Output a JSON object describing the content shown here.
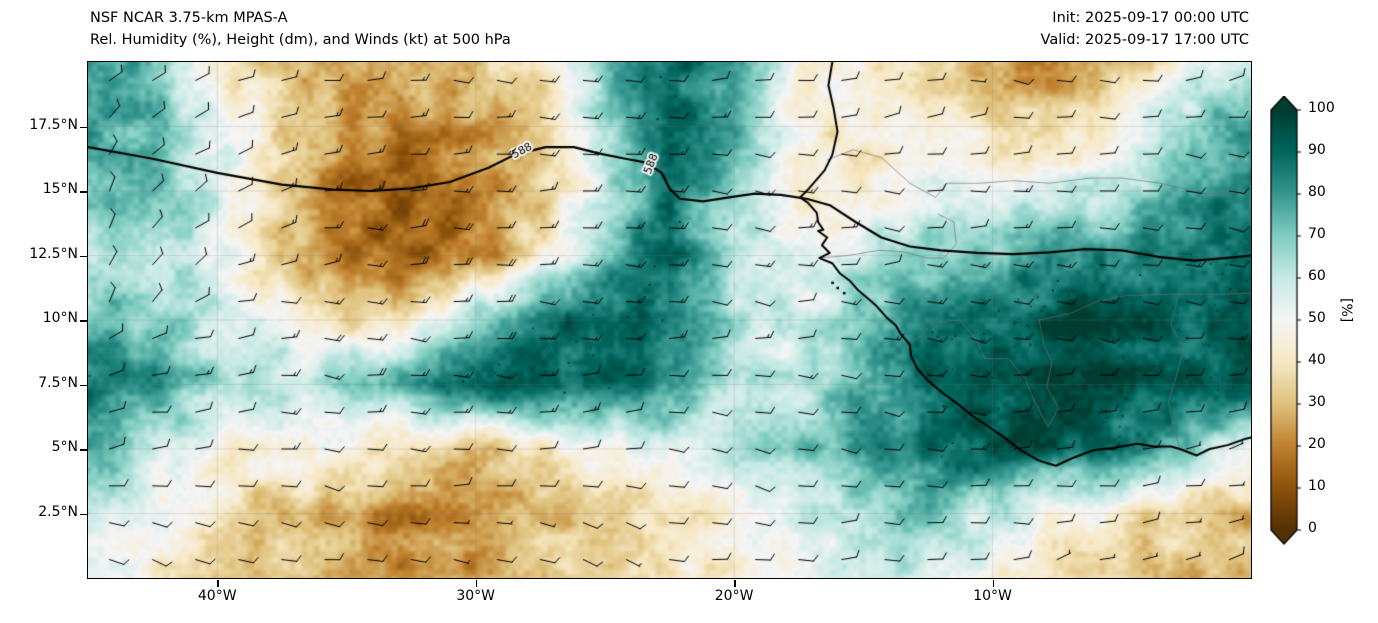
{
  "header": {
    "title_line1": "NSF NCAR 3.75-km MPAS-A",
    "title_line2": "Rel. Humidity (%), Height (dm), and Winds (kt) at 500 hPa",
    "init_label": "Init: 2025-09-17 00:00 UTC",
    "valid_label": "Valid: 2025-09-17 17:00 UTC"
  },
  "axes": {
    "lon_range": [
      -45,
      0
    ],
    "lat_range": [
      0,
      20
    ],
    "x_ticks": [
      {
        "label": "40°W",
        "lon": -40
      },
      {
        "label": "30°W",
        "lon": -30
      },
      {
        "label": "20°W",
        "lon": -20
      },
      {
        "label": "10°W",
        "lon": -10
      }
    ],
    "y_ticks": [
      {
        "label": "17.5°N",
        "lat": 17.5
      },
      {
        "label": "15°N",
        "lat": 15
      },
      {
        "label": "12.5°N",
        "lat": 12.5
      },
      {
        "label": "10°N",
        "lat": 10
      },
      {
        "label": "7.5°N",
        "lat": 7.5
      },
      {
        "label": "5°N",
        "lat": 5
      },
      {
        "label": "2.5°N",
        "lat": 2.5
      }
    ]
  },
  "colorbar": {
    "label": "[%]",
    "ticks": [
      0,
      10,
      20,
      30,
      40,
      50,
      60,
      70,
      80,
      90,
      100
    ],
    "vmin": 0,
    "vmax": 100,
    "colors": [
      "#543005",
      "#8c510a",
      "#bf812d",
      "#dfc27d",
      "#f6e8c3",
      "#f5f5f5",
      "#c7eae5",
      "#80cdc1",
      "#35978f",
      "#01665e",
      "#003c30"
    ]
  },
  "chart_data": {
    "type": "heatmap",
    "title": "NSF NCAR 3.75-km MPAS-A — Rel. Humidity (%), Height (dm), and Winds (kt) at 500 hPa",
    "xlabel": "",
    "ylabel": "",
    "field": "relative humidity (%) at 500 hPa",
    "overlays": [
      "geopotential height contour 588 dm",
      "wind barbs (kt)",
      "coastline",
      "country borders"
    ],
    "rh_grid": {
      "lons": [
        -45,
        -42.5,
        -40,
        -37.5,
        -35,
        -32.5,
        -30,
        -27.5,
        -25,
        -22.5,
        -20,
        -17.5,
        -15,
        -12.5,
        -10,
        -7.5,
        -5,
        -2.5,
        0
      ],
      "lats": [
        20,
        17.5,
        15,
        12.5,
        10,
        7.5,
        5,
        2.5,
        0
      ],
      "values": [
        [
          85,
          70,
          45,
          30,
          25,
          30,
          32,
          40,
          70,
          90,
          80,
          50,
          42,
          38,
          28,
          22,
          30,
          45,
          60
        ],
        [
          80,
          75,
          55,
          35,
          22,
          20,
          25,
          35,
          65,
          92,
          75,
          45,
          40,
          45,
          40,
          35,
          45,
          70,
          80
        ],
        [
          70,
          72,
          60,
          35,
          15,
          12,
          18,
          30,
          60,
          88,
          70,
          42,
          45,
          50,
          50,
          55,
          60,
          75,
          85
        ],
        [
          60,
          65,
          55,
          30,
          15,
          13,
          20,
          40,
          70,
          90,
          60,
          50,
          60,
          70,
          75,
          80,
          85,
          88,
          90
        ],
        [
          75,
          70,
          60,
          50,
          35,
          40,
          70,
          90,
          92,
          88,
          65,
          55,
          70,
          85,
          92,
          95,
          93,
          90,
          92
        ],
        [
          90,
          80,
          65,
          60,
          70,
          80,
          90,
          92,
          88,
          80,
          60,
          58,
          75,
          90,
          95,
          96,
          95,
          93,
          92
        ],
        [
          80,
          60,
          45,
          50,
          45,
          35,
          30,
          40,
          50,
          55,
          65,
          70,
          78,
          88,
          92,
          90,
          85,
          70,
          45
        ],
        [
          55,
          50,
          40,
          30,
          25,
          20,
          22,
          30,
          35,
          40,
          45,
          55,
          65,
          70,
          60,
          50,
          40,
          35,
          30
        ],
        [
          50,
          45,
          35,
          30,
          25,
          22,
          25,
          30,
          35,
          40,
          45,
          55,
          60,
          55,
          45,
          40,
          35,
          30,
          28
        ]
      ]
    },
    "height_contour": {
      "value_dm": 588,
      "path": [
        [
          -45,
          16.7
        ],
        [
          -42.5,
          16.25
        ],
        [
          -40,
          15.7
        ],
        [
          -37.5,
          15.25
        ],
        [
          -35.5,
          15.05
        ],
        [
          -34,
          15.0
        ],
        [
          -32.5,
          15.1
        ],
        [
          -31,
          15.35
        ],
        [
          -29.5,
          15.9
        ],
        [
          -28.5,
          16.4
        ],
        [
          -27.3,
          16.7
        ],
        [
          -26.2,
          16.7
        ],
        [
          -25.2,
          16.45
        ],
        [
          -24.2,
          16.25
        ],
        [
          -23.4,
          16.1
        ],
        [
          -22.8,
          15.7
        ],
        [
          -22.5,
          15.1
        ],
        [
          -22.1,
          14.7
        ],
        [
          -21.2,
          14.6
        ],
        [
          -20.2,
          14.75
        ],
        [
          -19.2,
          14.9
        ],
        [
          -18.2,
          14.85
        ],
        [
          -17.2,
          14.7
        ],
        [
          -16.3,
          14.45
        ],
        [
          -15.3,
          13.8
        ],
        [
          -14.3,
          13.2
        ],
        [
          -13.2,
          12.85
        ],
        [
          -12,
          12.7
        ],
        [
          -10.6,
          12.6
        ],
        [
          -9.2,
          12.55
        ],
        [
          -7.8,
          12.62
        ],
        [
          -6.4,
          12.75
        ],
        [
          -5,
          12.7
        ],
        [
          -3.6,
          12.45
        ],
        [
          -2.2,
          12.3
        ],
        [
          -1,
          12.4
        ],
        [
          0,
          12.5
        ]
      ],
      "labels": [
        {
          "text": "588",
          "lon": -28.2,
          "lat": 16.55,
          "rot": -28
        },
        {
          "text": "588",
          "lon": -23.2,
          "lat": 16.05,
          "rot": -68
        }
      ]
    },
    "wind": {
      "units": "kt",
      "lons": [
        -45,
        -40,
        -35,
        -30,
        -25,
        -20,
        -15,
        -10,
        -5,
        0
      ],
      "lats": [
        20,
        17.5,
        15,
        12.5,
        10,
        7.5,
        5,
        2.5,
        0
      ],
      "u": [
        [
          -8,
          -10,
          -12,
          -10,
          -12,
          -12,
          -10,
          -8,
          -8,
          -10
        ],
        [
          -6,
          -10,
          -14,
          -12,
          -14,
          -12,
          -10,
          -10,
          -8,
          -10
        ],
        [
          -4,
          -8,
          -15,
          -15,
          -15,
          -12,
          -10,
          -12,
          -10,
          -12
        ],
        [
          -2,
          -10,
          -15,
          -18,
          -15,
          -12,
          -12,
          -15,
          -12,
          -10
        ],
        [
          -5,
          -12,
          -15,
          -18,
          -15,
          -12,
          -15,
          -15,
          -12,
          -12
        ],
        [
          -8,
          -12,
          -15,
          -15,
          -12,
          -10,
          -12,
          -15,
          -12,
          -10
        ],
        [
          -10,
          -12,
          -12,
          -12,
          -10,
          -10,
          -12,
          -12,
          -10,
          -8
        ],
        [
          -10,
          -10,
          -10,
          -8,
          -8,
          -10,
          -10,
          -8,
          -8,
          -8
        ],
        [
          -8,
          -8,
          -8,
          -8,
          -8,
          -8,
          -8,
          -8,
          -6,
          -6
        ]
      ],
      "v": [
        [
          -6,
          -2,
          0,
          2,
          0,
          -2,
          0,
          2,
          0,
          -2
        ],
        [
          -8,
          -4,
          0,
          0,
          2,
          0,
          -2,
          0,
          2,
          0
        ],
        [
          -10,
          -5,
          -2,
          0,
          0,
          2,
          0,
          0,
          0,
          2
        ],
        [
          -12,
          -5,
          0,
          0,
          2,
          2,
          0,
          0,
          2,
          2
        ],
        [
          -8,
          -2,
          0,
          2,
          2,
          0,
          0,
          2,
          2,
          0
        ],
        [
          -5,
          0,
          2,
          2,
          0,
          0,
          2,
          2,
          0,
          0
        ],
        [
          -2,
          0,
          2,
          0,
          0,
          2,
          2,
          0,
          0,
          -2
        ],
        [
          0,
          2,
          2,
          0,
          2,
          2,
          0,
          0,
          -2,
          -2
        ],
        [
          2,
          2,
          0,
          0,
          2,
          0,
          0,
          -2,
          -2,
          0
        ]
      ]
    },
    "coastline": [
      [
        -16.2,
        20.0
      ],
      [
        -16.35,
        19.1
      ],
      [
        -16.15,
        18.2
      ],
      [
        -16.0,
        17.3
      ],
      [
        -16.2,
        16.4
      ],
      [
        -16.5,
        15.8
      ],
      [
        -17.1,
        15.1
      ],
      [
        -17.45,
        14.75
      ],
      [
        -17.15,
        14.55
      ],
      [
        -16.8,
        14.15
      ],
      [
        -16.75,
        13.8
      ],
      [
        -16.55,
        13.5
      ],
      [
        -16.75,
        13.45
      ],
      [
        -16.4,
        13.2
      ],
      [
        -16.6,
        12.9
      ],
      [
        -16.3,
        12.6
      ],
      [
        -16.7,
        12.4
      ],
      [
        -16.2,
        12.2
      ],
      [
        -15.9,
        11.8
      ],
      [
        -15.5,
        11.5
      ],
      [
        -15.2,
        11.15
      ],
      [
        -14.9,
        10.9
      ],
      [
        -14.5,
        10.55
      ],
      [
        -14.1,
        10.1
      ],
      [
        -13.75,
        9.8
      ],
      [
        -13.55,
        9.45
      ],
      [
        -13.2,
        9.05
      ],
      [
        -13.15,
        8.6
      ],
      [
        -12.9,
        8.1
      ],
      [
        -12.5,
        7.65
      ],
      [
        -11.9,
        7.15
      ],
      [
        -11.35,
        6.75
      ],
      [
        -10.8,
        6.3
      ],
      [
        -10.2,
        5.9
      ],
      [
        -9.55,
        5.45
      ],
      [
        -8.9,
        4.95
      ],
      [
        -8.2,
        4.55
      ],
      [
        -7.55,
        4.35
      ],
      [
        -6.9,
        4.65
      ],
      [
        -6.1,
        4.95
      ],
      [
        -5.3,
        5.05
      ],
      [
        -4.4,
        5.2
      ],
      [
        -3.75,
        5.1
      ],
      [
        -3.1,
        5.1
      ],
      [
        -2.75,
        5.0
      ],
      [
        -2.1,
        4.75
      ],
      [
        -1.6,
        5.0
      ],
      [
        -0.9,
        5.15
      ],
      [
        -0.2,
        5.4
      ],
      [
        0,
        5.45
      ]
    ],
    "islands": [
      [
        -16.0,
        11.25
      ],
      [
        -15.75,
        11.05
      ],
      [
        -16.2,
        11.45
      ]
    ],
    "borders": [
      [
        [
          -16.4,
          16.2
        ],
        [
          -15.4,
          16.6
        ],
        [
          -14.3,
          16.3
        ],
        [
          -13.2,
          15.3
        ],
        [
          -12.2,
          14.75
        ],
        [
          -11.8,
          15.3
        ],
        [
          -11.2,
          15.3
        ],
        [
          -10.5,
          15.3
        ],
        [
          -9.2,
          15.4
        ],
        [
          -7.8,
          15.3
        ],
        [
          -6.2,
          15.5
        ],
        [
          -5.0,
          15.5
        ],
        [
          -3.5,
          15.3
        ],
        [
          -1.8,
          14.9
        ],
        [
          0,
          14.95
        ]
      ],
      [
        [
          -16.7,
          12.4
        ],
        [
          -15.6,
          12.5
        ],
        [
          -14.4,
          12.7
        ],
        [
          -13.5,
          12.65
        ],
        [
          -12.5,
          12.4
        ],
        [
          -11.9,
          12.4
        ],
        [
          -11.4,
          12.95
        ],
        [
          -11.5,
          13.8
        ],
        [
          -12.1,
          14.1
        ]
      ],
      [
        [
          -13.3,
          9.05
        ],
        [
          -12.8,
          9.35
        ],
        [
          -12.3,
          9.9
        ],
        [
          -11.3,
          10.0
        ],
        [
          -10.65,
          9.3
        ],
        [
          -10.3,
          8.5
        ],
        [
          -9.4,
          8.5
        ],
        [
          -8.75,
          7.75
        ],
        [
          -8.4,
          6.9
        ],
        [
          -7.85,
          5.85
        ]
      ],
      [
        [
          -8.2,
          10.0
        ],
        [
          -7.0,
          10.25
        ],
        [
          -6.0,
          10.7
        ],
        [
          -4.8,
          10.95
        ],
        [
          -3.0,
          11.0
        ],
        [
          -1.2,
          11.0
        ],
        [
          0,
          11.05
        ]
      ],
      [
        [
          -2.8,
          11.0
        ],
        [
          -3.1,
          9.8
        ],
        [
          -2.6,
          8.9
        ],
        [
          -2.9,
          7.8
        ],
        [
          -3.2,
          6.8
        ],
        [
          -2.95,
          5.7
        ],
        [
          -2.75,
          5.0
        ]
      ],
      [
        [
          -7.85,
          5.85
        ],
        [
          -7.45,
          6.6
        ],
        [
          -7.9,
          7.4
        ],
        [
          -7.7,
          8.4
        ],
        [
          -8.0,
          9.0
        ],
        [
          -8.2,
          10.0
        ]
      ]
    ]
  }
}
